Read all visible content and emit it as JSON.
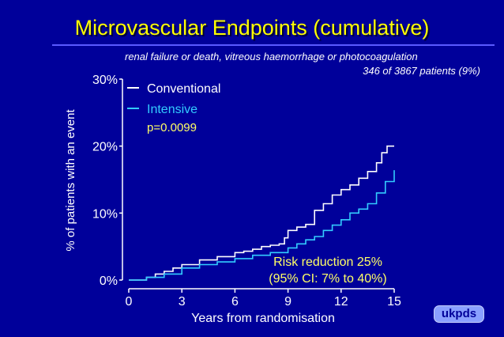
{
  "slide": {
    "title": "Microvascular Endpoints (cumulative)",
    "subtitle_line1": "renal failure or death, vitreous haemorrhage or photocoagulation",
    "subtitle_line2": "346 of 3867 patients (9%)",
    "logo_text": "ukpds"
  },
  "colors": {
    "background": "#00009a",
    "title": "#ffff00",
    "conventional": "#ffffff",
    "intensive": "#33ccff",
    "annotation": "#ffff66"
  },
  "chart_data": {
    "type": "line",
    "title": "Microvascular Endpoints (cumulative)",
    "xlabel": "Years from randomisation",
    "ylabel": "% of patients with an event",
    "xlim": [
      0,
      15
    ],
    "ylim": [
      0,
      30
    ],
    "xticks": [
      0,
      3,
      6,
      9,
      12,
      15
    ],
    "yticks": [
      0,
      10,
      20,
      30
    ],
    "ytick_labels": [
      "0%",
      "10%",
      "20%",
      "30%"
    ],
    "legend": [
      {
        "name": "Conventional",
        "color": "#ffffff"
      },
      {
        "name": "Intensive",
        "color": "#33ccff"
      }
    ],
    "p_value": "p=0.0099",
    "annotation_line1": "Risk reduction 25%",
    "annotation_line2": "(95% CI: 7% to 40%)",
    "series": [
      {
        "name": "Conventional",
        "color": "#ffffff",
        "x": [
          0,
          1,
          1.5,
          2,
          2.5,
          3,
          4,
          5,
          6,
          6.5,
          7,
          7.5,
          8,
          8.5,
          8.8,
          9,
          9.5,
          10,
          10.5,
          11,
          11.5,
          12,
          12.5,
          13,
          13.5,
          14,
          14.3,
          14.6,
          15
        ],
        "y": [
          0,
          0.4,
          0.9,
          1.3,
          1.8,
          2.3,
          3.0,
          3.5,
          4.1,
          4.3,
          4.6,
          5.0,
          5.2,
          5.4,
          6.3,
          7.4,
          7.9,
          8.3,
          10.4,
          11.4,
          12.7,
          13.5,
          14.2,
          15.2,
          16.2,
          17.5,
          19.0,
          20.0,
          20.0
        ]
      },
      {
        "name": "Intensive",
        "color": "#33ccff",
        "x": [
          0,
          1,
          2,
          3,
          4,
          5,
          6,
          7,
          8,
          9,
          9.5,
          10,
          10.5,
          11,
          11.5,
          12,
          12.5,
          13,
          13.5,
          14,
          14.5,
          15
        ],
        "y": [
          0,
          0.4,
          0.9,
          1.8,
          2.3,
          2.7,
          3.2,
          3.7,
          4.1,
          4.8,
          5.4,
          6.0,
          6.5,
          7.4,
          8.2,
          9.0,
          10.0,
          10.6,
          11.4,
          13.0,
          14.7,
          16.4
        ]
      }
    ]
  }
}
